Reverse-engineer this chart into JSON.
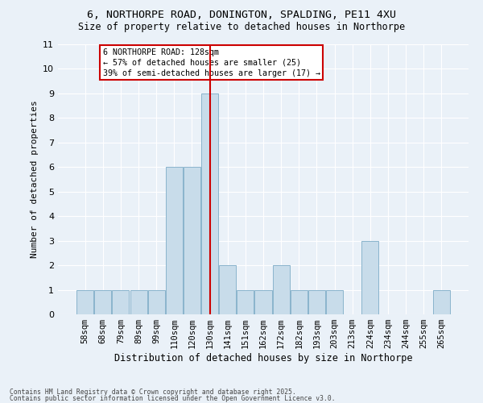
{
  "title1": "6, NORTHORPE ROAD, DONINGTON, SPALDING, PE11 4XU",
  "title2": "Size of property relative to detached houses in Northorpe",
  "xlabel": "Distribution of detached houses by size in Northorpe",
  "ylabel": "Number of detached properties",
  "categories": [
    "58sqm",
    "68sqm",
    "79sqm",
    "89sqm",
    "99sqm",
    "110sqm",
    "120sqm",
    "130sqm",
    "141sqm",
    "151sqm",
    "162sqm",
    "172sqm",
    "182sqm",
    "193sqm",
    "203sqm",
    "213sqm",
    "224sqm",
    "234sqm",
    "244sqm",
    "255sqm",
    "265sqm"
  ],
  "values": [
    1,
    1,
    1,
    1,
    1,
    6,
    6,
    9,
    2,
    1,
    1,
    2,
    1,
    1,
    1,
    0,
    3,
    0,
    0,
    0,
    1
  ],
  "bar_color": "#c8dcea",
  "bar_edgecolor": "#8ab4cc",
  "ref_line_x": 7.5,
  "ref_line_color": "#cc0000",
  "annotation_text": "6 NORTHORPE ROAD: 128sqm\n← 57% of detached houses are smaller (25)\n39% of semi-detached houses are larger (17) →",
  "annotation_box_color": "white",
  "annotation_box_edgecolor": "#cc0000",
  "ylim": [
    0,
    11
  ],
  "yticks": [
    0,
    1,
    2,
    3,
    4,
    5,
    6,
    7,
    8,
    9,
    10,
    11
  ],
  "footer1": "Contains HM Land Registry data © Crown copyright and database right 2025.",
  "footer2": "Contains public sector information licensed under the Open Government Licence v3.0.",
  "bg_color": "#eaf1f8",
  "grid_color": "white"
}
